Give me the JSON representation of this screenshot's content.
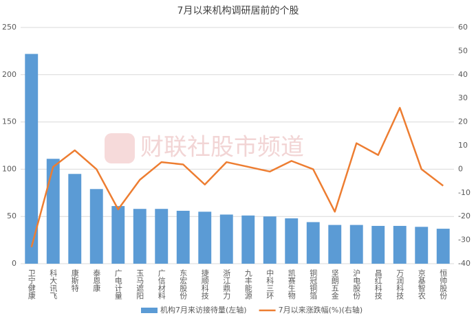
{
  "chart_data": {
    "type": "bar-line",
    "title": "7月以来机构调研居前的个股",
    "watermark": "财联社股市频道",
    "categories": [
      "卫宁健康",
      "科大讯飞",
      "康斯特",
      "泰恩康",
      "广电计量",
      "玉马遮阳",
      "广信材料",
      "东宏股份",
      "捷顺科技",
      "浙江鼎力",
      "九丰能源",
      "中科三环",
      "凯赛生物",
      "铜冠铜箔",
      "坚朗五金",
      "沪电股份",
      "昌红科技",
      "万润科技",
      "京基智农",
      "恒帅股份"
    ],
    "series": [
      {
        "name": "机构7月来访接待量(左轴)",
        "type": "bar",
        "color": "#5b9bd5",
        "values": [
          222,
          111,
          95,
          79,
          61,
          58,
          58,
          56,
          55,
          52,
          51,
          50,
          48,
          44,
          41,
          41,
          40,
          40,
          39,
          37
        ]
      },
      {
        "name": "7月以来涨跌幅(%)(右轴)",
        "type": "line",
        "axis": "y2",
        "color": "#ed7d31",
        "values": [
          -33,
          1,
          8,
          0,
          -17,
          -4.5,
          3,
          2,
          -6.5,
          3,
          1,
          -1,
          3.5,
          0,
          -18,
          11,
          6,
          26,
          0,
          -7
        ]
      }
    ],
    "ylim": [
      0,
      250
    ],
    "yticks": [
      0,
      50,
      100,
      150,
      200,
      250
    ],
    "y2lim": [
      -40,
      60
    ],
    "y2ticks": [
      -40,
      -30,
      -20,
      -10,
      0,
      10,
      20,
      30,
      40,
      50,
      60
    ],
    "grid": true,
    "legend": "bottom"
  }
}
